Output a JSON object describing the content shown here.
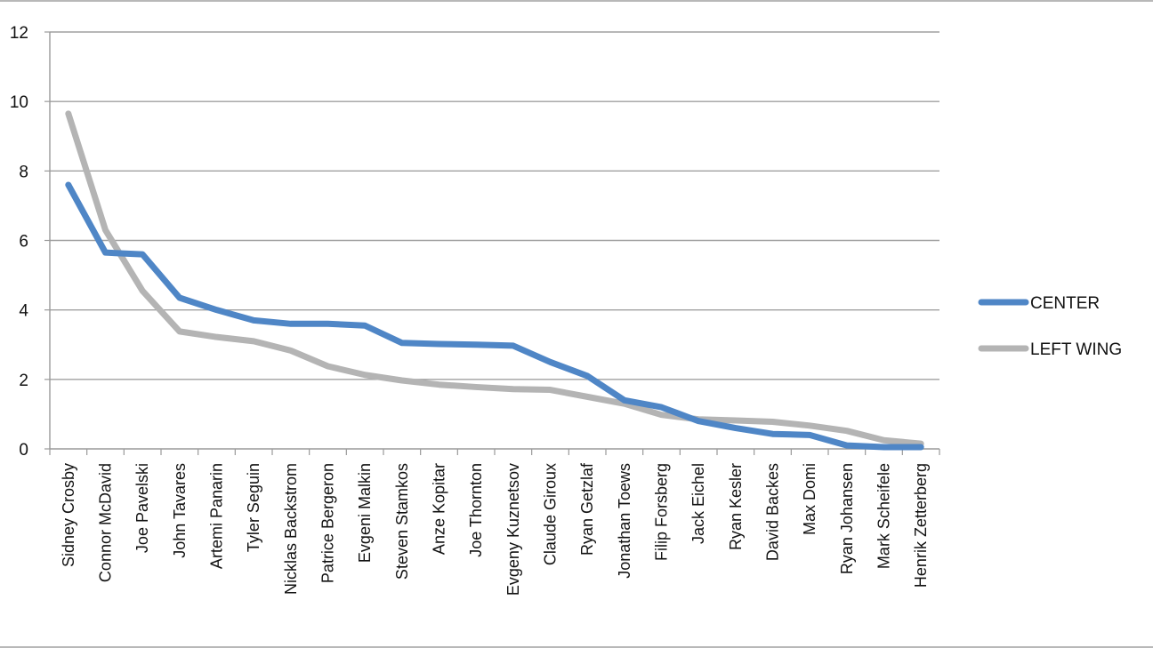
{
  "chart_data": {
    "type": "line",
    "title": "",
    "xlabel": "",
    "ylabel": "",
    "ylim": [
      0,
      12
    ],
    "yticks": [
      0,
      2,
      4,
      6,
      8,
      10,
      12
    ],
    "grid": true,
    "legend_position": "right",
    "categories": [
      "Sidney Crosby",
      "Connor McDavid",
      "Joe Pavelski",
      "John Tavares",
      "Artemi Panarin",
      "Tyler Seguin",
      "Nicklas Backstrom",
      "Patrice Bergeron",
      "Evgeni Malkin",
      "Steven Stamkos",
      "Anze Kopitar",
      "Joe Thornton",
      "Evgeny Kuznetsov",
      "Claude Giroux",
      "Ryan Getzlaf",
      "Jonathan Toews",
      "Filip Forsberg",
      "Jack Eichel",
      "Ryan Kesler",
      "David Backes",
      "Max Domi",
      "Ryan Johansen",
      "Mark Scheifele",
      "Henrik Zetterberg"
    ],
    "series": [
      {
        "name": "CENTER",
        "color": "#4f86c6",
        "values": [
          7.6,
          5.65,
          5.6,
          4.35,
          4.0,
          3.7,
          3.6,
          3.6,
          3.55,
          3.05,
          3.02,
          3.0,
          2.97,
          2.5,
          2.1,
          1.4,
          1.2,
          0.8,
          0.6,
          0.43,
          0.4,
          0.1,
          0.05,
          0.05
        ]
      },
      {
        "name": "LEFT WING",
        "color": "#b4b4b4",
        "values": [
          9.65,
          6.3,
          4.55,
          3.38,
          3.22,
          3.1,
          2.83,
          2.38,
          2.13,
          1.97,
          1.85,
          1.78,
          1.72,
          1.7,
          1.5,
          1.3,
          0.98,
          0.85,
          0.82,
          0.78,
          0.67,
          0.52,
          0.25,
          0.15
        ]
      }
    ]
  }
}
